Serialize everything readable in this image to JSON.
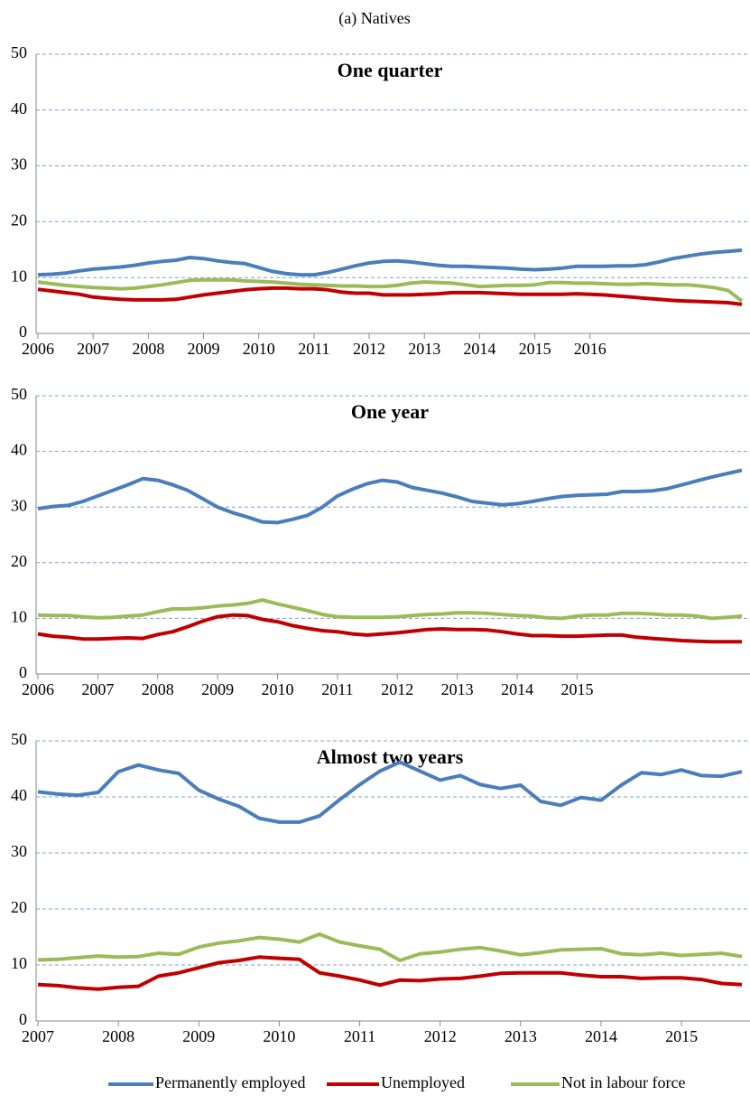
{
  "title": "(a) Natives",
  "chart_data": [
    {
      "type": "line",
      "title": "One quarter",
      "categories": [
        "2006",
        null,
        null,
        null,
        "2007",
        null,
        null,
        null,
        "2008",
        null,
        null,
        null,
        "2009",
        null,
        null,
        null,
        "2010",
        null,
        null,
        null,
        "2011",
        null,
        null,
        null,
        "2012",
        null,
        null,
        null,
        "2013",
        null,
        null,
        null,
        "2014",
        null,
        null,
        null,
        "2015",
        null,
        null,
        null,
        "2016",
        null,
        null,
        null,
        null,
        null,
        null,
        null,
        null,
        null,
        null,
        null
      ],
      "series": [
        {
          "color": "#4a7ebb",
          "values": [
            10.5,
            10.6,
            10.8,
            11.2,
            11.5,
            11.7,
            11.9,
            12.2,
            12.6,
            12.9,
            13.1,
            13.6,
            13.4,
            13.0,
            12.7,
            12.5,
            11.8,
            11.1,
            10.7,
            10.5,
            10.5,
            10.9,
            11.5,
            12.1,
            12.6,
            12.9,
            13.0,
            12.8,
            12.5,
            12.2,
            12.0,
            12.0,
            11.9,
            11.8,
            11.7,
            11.5,
            11.4,
            11.5,
            11.7,
            12.0,
            12.0,
            12.0,
            12.1,
            12.1,
            12.3,
            12.8,
            13.4,
            13.8,
            14.2,
            14.5,
            14.7,
            14.9
          ]
        },
        {
          "color": "#c00000",
          "values": [
            7.9,
            7.6,
            7.3,
            7.0,
            6.5,
            6.3,
            6.1,
            6.0,
            6.0,
            6.0,
            6.1,
            6.5,
            6.9,
            7.2,
            7.5,
            7.8,
            8.0,
            8.1,
            8.1,
            8.0,
            8.0,
            7.8,
            7.4,
            7.2,
            7.2,
            6.9,
            6.9,
            6.9,
            7.0,
            7.1,
            7.3,
            7.3,
            7.3,
            7.2,
            7.1,
            7.0,
            7.0,
            7.0,
            7.0,
            7.1,
            7.0,
            6.9,
            6.7,
            6.5,
            6.3,
            6.1,
            5.9,
            5.8,
            5.7,
            5.6,
            5.5,
            5.2
          ]
        },
        {
          "color": "#9bbb59",
          "values": [
            9.2,
            8.9,
            8.6,
            8.4,
            8.2,
            8.1,
            8.0,
            8.1,
            8.4,
            8.7,
            9.1,
            9.5,
            9.6,
            9.6,
            9.6,
            9.4,
            9.3,
            9.2,
            9.0,
            8.8,
            8.7,
            8.6,
            8.5,
            8.5,
            8.4,
            8.4,
            8.6,
            9.0,
            9.2,
            9.1,
            9.0,
            8.7,
            8.4,
            8.5,
            8.6,
            8.6,
            8.7,
            9.1,
            9.1,
            9.0,
            9.0,
            8.9,
            8.8,
            8.8,
            8.9,
            8.8,
            8.7,
            8.7,
            8.5,
            8.2,
            7.7,
            5.8
          ]
        }
      ],
      "ylim": [
        0,
        50
      ],
      "yticks": [
        0,
        10,
        20,
        30,
        40,
        50
      ],
      "grid": true
    },
    {
      "type": "line",
      "title": "One year",
      "categories": [
        "2006",
        null,
        null,
        null,
        "2007",
        null,
        null,
        null,
        "2008",
        null,
        null,
        null,
        "2009",
        null,
        null,
        null,
        "2010",
        null,
        null,
        null,
        "2011",
        null,
        null,
        null,
        "2012",
        null,
        null,
        null,
        "2013",
        null,
        null,
        null,
        "2014",
        null,
        null,
        null,
        "2015",
        null,
        null,
        null,
        null,
        null,
        null,
        null,
        null,
        null,
        null,
        null
      ],
      "series": [
        {
          "color": "#4a7ebb",
          "values": [
            29.7,
            30.1,
            30.3,
            31,
            32,
            33,
            34,
            35.1,
            34.8,
            34,
            33,
            31.5,
            30,
            29,
            28.2,
            27.3,
            27.2,
            27.8,
            28.5,
            30,
            32,
            33.2,
            34.2,
            34.8,
            34.5,
            33.5,
            33,
            32.5,
            31.8,
            31.0,
            30.7,
            30.4,
            30.6,
            31.0,
            31.5,
            31.9,
            32.1,
            32.2,
            32.3,
            32.8,
            32.8,
            32.9,
            33.3,
            34,
            34.7,
            35.4,
            36,
            36.6
          ]
        },
        {
          "color": "#c00000",
          "values": [
            7.2,
            6.8,
            6.6,
            6.3,
            6.3,
            6.4,
            6.5,
            6.4,
            7.1,
            7.6,
            8.5,
            9.5,
            10.3,
            10.6,
            10.5,
            9.8,
            9.4,
            8.7,
            8.2,
            7.8,
            7.6,
            7.2,
            7.0,
            7.2,
            7.4,
            7.7,
            8.0,
            8.1,
            8.0,
            8.0,
            7.9,
            7.6,
            7.2,
            6.9,
            6.9,
            6.8,
            6.8,
            6.9,
            7.0,
            7.0,
            6.6,
            6.4,
            6.2,
            6.0,
            5.9,
            5.8,
            5.8,
            5.8
          ]
        },
        {
          "color": "#9bbb59",
          "values": [
            10.6,
            10.5,
            10.5,
            10.3,
            10.1,
            10.2,
            10.4,
            10.6,
            11.2,
            11.7,
            11.7,
            11.9,
            12.2,
            12.4,
            12.7,
            13.3,
            12.6,
            12.0,
            11.4,
            10.7,
            10.3,
            10.2,
            10.2,
            10.2,
            10.3,
            10.5,
            10.7,
            10.8,
            11.0,
            11.0,
            10.9,
            10.7,
            10.5,
            10.4,
            10.1,
            10.0,
            10.4,
            10.6,
            10.6,
            10.9,
            10.9,
            10.8,
            10.6,
            10.6,
            10.4,
            10.0,
            10.2,
            10.4
          ]
        }
      ],
      "ylim": [
        0,
        50
      ],
      "yticks": [
        0,
        10,
        20,
        30,
        40,
        50
      ],
      "grid": true
    },
    {
      "type": "line",
      "title": "Almost two years",
      "categories": [
        "2007",
        null,
        null,
        null,
        "2008",
        null,
        null,
        null,
        "2009",
        null,
        null,
        null,
        "2010",
        null,
        null,
        null,
        "2011",
        null,
        null,
        null,
        "2012",
        null,
        null,
        null,
        "2013",
        null,
        null,
        null,
        "2014",
        null,
        null,
        null,
        "2015",
        null,
        null,
        null
      ],
      "series": [
        {
          "name": "Permanently employed",
          "color": "#4a7ebb",
          "values": [
            40.9,
            40.5,
            40.3,
            40.8,
            44.5,
            45.7,
            44.8,
            44.2,
            41.2,
            39.6,
            38.3,
            36.2,
            35.5,
            35.5,
            36.6,
            39.5,
            42.2,
            44.6,
            46.2,
            44.6,
            43.0,
            43.8,
            42.2,
            41.5,
            42.1,
            39.2,
            38.5,
            39.9,
            39.4,
            42.1,
            44.3,
            44.0,
            44.8,
            43.8,
            43.7,
            44.5
          ]
        },
        {
          "name": "Unemployed",
          "color": "#c00000",
          "values": [
            6.5,
            6.3,
            5.9,
            5.7,
            6.0,
            6.2,
            8.0,
            8.6,
            9.5,
            10.4,
            10.8,
            11.4,
            11.2,
            11.0,
            8.6,
            8.0,
            7.3,
            6.4,
            7.3,
            7.2,
            7.5,
            7.6,
            8.0,
            8.5,
            8.6,
            8.6,
            8.6,
            8.2,
            7.9,
            7.9,
            7.6,
            7.7,
            7.7,
            7.4,
            6.7,
            6.5
          ]
        },
        {
          "name": "Not in labour force",
          "color": "#9bbb59",
          "values": [
            10.9,
            11.0,
            11.3,
            11.6,
            11.4,
            11.5,
            12.1,
            11.9,
            13.2,
            13.9,
            14.3,
            14.9,
            14.6,
            14.1,
            15.5,
            14.1,
            13.4,
            12.8,
            10.8,
            12.0,
            12.3,
            12.8,
            13.1,
            12.5,
            11.8,
            12.2,
            12.7,
            12.8,
            12.9,
            12.0,
            11.8,
            12.1,
            11.7,
            11.9,
            12.1,
            11.5
          ]
        }
      ],
      "ylim": [
        0,
        50
      ],
      "yticks": [
        0,
        10,
        20,
        30,
        40,
        50
      ],
      "grid": true,
      "legend": "bottom"
    }
  ]
}
